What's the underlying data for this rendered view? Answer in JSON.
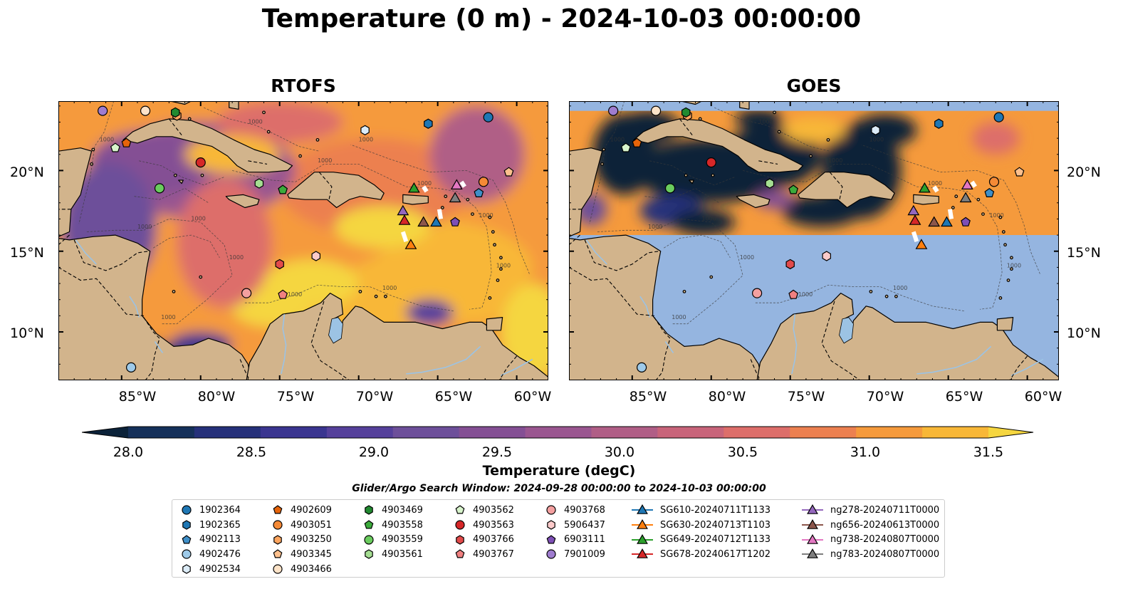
{
  "figure": {
    "suptitle": "Temperature (0 m) - 2024-10-03 00:00:00",
    "panels": [
      {
        "title": "RTOFS",
        "source": "model"
      },
      {
        "title": "GOES",
        "source": "satellite"
      }
    ],
    "lat_labels": [
      "20°N",
      "15°N",
      "10°N"
    ],
    "lon_labels": [
      "85°W",
      "80°W",
      "75°W",
      "70°W",
      "65°W",
      "60°W"
    ],
    "contour_label": "1000"
  },
  "map_extent": {
    "lon": [
      -89,
      -58
    ],
    "lat": [
      7,
      24.3
    ]
  },
  "lat_ticks": [
    20,
    15,
    10
  ],
  "lon_ticks": [
    -85,
    -80,
    -75,
    -70,
    -65,
    -60
  ],
  "goes_coverage_lat": [
    16,
    23.7
  ],
  "colors": {
    "land": "#d2b48c",
    "no_data": "#95b5e0",
    "river": "#9cc3e4",
    "lake": "#9cc3e4"
  },
  "colorbar": {
    "label": "Temperature (degC)",
    "min": 28.0,
    "max": 31.5,
    "step": 0.25,
    "tick_values": [
      28.0,
      28.5,
      29.0,
      29.5,
      30.0,
      30.5,
      31.0,
      31.5
    ],
    "tick_labels": [
      "28.0",
      "28.5",
      "29.0",
      "29.5",
      "30.0",
      "30.5",
      "31.0",
      "31.5"
    ],
    "extend": "both",
    "colors": [
      "#0b2239",
      "#15305a",
      "#25307a",
      "#3a3590",
      "#55409b",
      "#6d4f9a",
      "#844f94",
      "#9a5690",
      "#b05e86",
      "#c8647a",
      "#dd6e6a",
      "#ec8050",
      "#f59a3c",
      "#f8b737",
      "#f5d640"
    ]
  },
  "search_window": "Glider/Argo Search Window: 2024-09-28 00:00:00 to 2024-10-03 00:00:00",
  "legend_columns": [
    [
      {
        "label": "1902364",
        "marker": "circle",
        "color": "#1f77b4"
      },
      {
        "label": "1902365",
        "marker": "hexagon",
        "color": "#1f77b4"
      },
      {
        "label": "4902113",
        "marker": "pentagon",
        "color": "#3f8fc8"
      },
      {
        "label": "4902476",
        "marker": "circle",
        "color": "#9ecae9"
      },
      {
        "label": "4902534",
        "marker": "hexagon",
        "color": "#dcecf8"
      }
    ],
    [
      {
        "label": "4902609",
        "marker": "pentagon",
        "color": "#e6640a"
      },
      {
        "label": "4903051",
        "marker": "circle",
        "color": "#f58a36"
      },
      {
        "label": "4903250",
        "marker": "hexagon",
        "color": "#fda55f"
      },
      {
        "label": "4903345",
        "marker": "pentagon",
        "color": "#fdc08d"
      },
      {
        "label": "4903466",
        "marker": "circle",
        "color": "#fde3c8"
      }
    ],
    [
      {
        "label": "4903469",
        "marker": "hexagon",
        "color": "#218a30"
      },
      {
        "label": "4903558",
        "marker": "pentagon",
        "color": "#3cab3c"
      },
      {
        "label": "4903559",
        "marker": "circle",
        "color": "#6acc5e"
      },
      {
        "label": "4903561",
        "marker": "hexagon",
        "color": "#a5de92"
      }
    ],
    [
      {
        "label": "4903562",
        "marker": "pentagon",
        "color": "#d8f4cc"
      },
      {
        "label": "4903563",
        "marker": "circle",
        "color": "#d62728"
      },
      {
        "label": "4903766",
        "marker": "hexagon",
        "color": "#e24a4a"
      },
      {
        "label": "4903767",
        "marker": "pentagon",
        "color": "#f08080"
      }
    ],
    [
      {
        "label": "4903768",
        "marker": "circle",
        "color": "#f4a0a0"
      },
      {
        "label": "5906437",
        "marker": "hexagon",
        "color": "#fccaca"
      },
      {
        "label": "6903111",
        "marker": "pentagon",
        "color": "#7e4fb6"
      },
      {
        "label": "7901009",
        "marker": "circle",
        "color": "#9f7ccf"
      }
    ],
    [
      {
        "label": "SG610-20240711T1133",
        "marker": "triangle-line",
        "color": "#1f77b4"
      },
      {
        "label": "SG630-20240713T1103",
        "marker": "triangle-line",
        "color": "#ff7f0e"
      },
      {
        "label": "SG649-20240712T1133",
        "marker": "triangle-line",
        "color": "#2ca02c"
      },
      {
        "label": "SG678-20240617T1202",
        "marker": "triangle-line",
        "color": "#d62728"
      }
    ],
    [
      {
        "label": "ng278-20240711T0000",
        "marker": "triangle-line",
        "color": "#9467bd"
      },
      {
        "label": "ng656-20240613T0000",
        "marker": "triangle-line",
        "color": "#8c564b"
      },
      {
        "label": "ng738-20240807T0000",
        "marker": "triangle-line",
        "color": "#e377c2"
      },
      {
        "label": "ng783-20240807T0000",
        "marker": "triangle-line",
        "color": "#7f7f7f"
      }
    ]
  ],
  "argo_floats": [
    {
      "id": "1902364",
      "lon": -61.8,
      "lat": 23.3
    },
    {
      "id": "1902365",
      "lon": -65.6,
      "lat": 22.9
    },
    {
      "id": "4902113",
      "lon": -62.4,
      "lat": 18.6
    },
    {
      "id": "4902476",
      "lon": -84.4,
      "lat": 7.8
    },
    {
      "id": "4902534",
      "lon": -69.6,
      "lat": 22.5
    },
    {
      "id": "4902609",
      "lon": -84.7,
      "lat": 21.7
    },
    {
      "id": "4903051",
      "lon": -62.1,
      "lat": 19.3
    },
    {
      "id": "4903250",
      "lon": -81.5,
      "lat": 23.4
    },
    {
      "id": "4903345",
      "lon": -60.5,
      "lat": 19.9
    },
    {
      "id": "4903466",
      "lon": -83.5,
      "lat": 23.7
    },
    {
      "id": "4903469",
      "lon": -81.6,
      "lat": 23.6
    },
    {
      "id": "4903558",
      "lon": -74.8,
      "lat": 18.8
    },
    {
      "id": "4903559",
      "lon": -82.6,
      "lat": 18.9
    },
    {
      "id": "4903561",
      "lon": -76.3,
      "lat": 19.2
    },
    {
      "id": "4903562",
      "lon": -85.4,
      "lat": 21.4
    },
    {
      "id": "4903563",
      "lon": -80.0,
      "lat": 20.5
    },
    {
      "id": "4903766",
      "lon": -75.0,
      "lat": 14.2
    },
    {
      "id": "4903767",
      "lon": -74.8,
      "lat": 12.3
    },
    {
      "id": "4903768",
      "lon": -77.1,
      "lat": 12.4
    },
    {
      "id": "5906437",
      "lon": -72.7,
      "lat": 14.7
    },
    {
      "id": "6903111",
      "lon": -63.9,
      "lat": 16.8
    },
    {
      "id": "7901009",
      "lon": -86.2,
      "lat": 23.7
    }
  ],
  "gliders": [
    {
      "id": "SG610-20240711T1133",
      "lon": -65.1,
      "lat": 16.8
    },
    {
      "id": "SG630-20240713T1103",
      "lon": -66.7,
      "lat": 15.4
    },
    {
      "id": "SG649-20240712T1133",
      "lon": -66.5,
      "lat": 18.9
    },
    {
      "id": "SG678-20240617T1202",
      "lon": -67.1,
      "lat": 16.9
    },
    {
      "id": "ng278-20240711T0000",
      "lon": -67.2,
      "lat": 17.5
    },
    {
      "id": "ng656-20240613T0000",
      "lon": -65.9,
      "lat": 16.8
    },
    {
      "id": "ng738-20240807T0000",
      "lon": -63.8,
      "lat": 19.1
    },
    {
      "id": "ng783-20240807T0000",
      "lon": -63.9,
      "lat": 18.3
    }
  ],
  "glider_tracks": [
    [
      [
        -67.2,
        16.2
      ],
      [
        -67.0,
        15.6
      ]
    ],
    [
      [
        -64.9,
        17.6
      ],
      [
        -64.8,
        17.0
      ]
    ],
    [
      [
        -65.9,
        19.0
      ],
      [
        -65.7,
        18.7
      ]
    ],
    [
      [
        -63.5,
        19.3
      ],
      [
        -63.3,
        19.0
      ]
    ]
  ]
}
